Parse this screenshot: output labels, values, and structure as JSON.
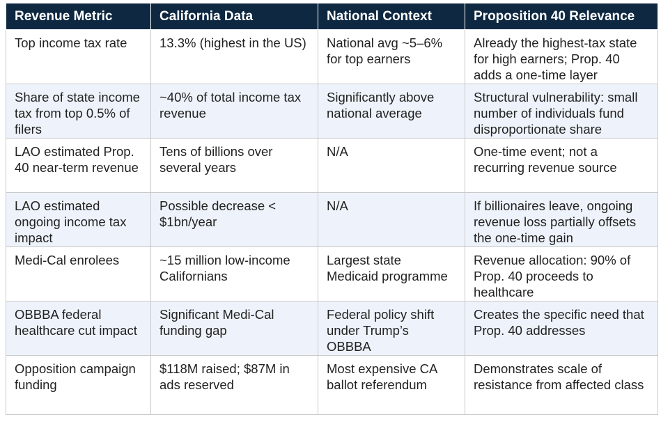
{
  "table": {
    "headers": [
      "Revenue Metric",
      "California Data",
      "National Context",
      "Proposition 40 Relevance"
    ],
    "rows": [
      [
        "Top income tax rate",
        "13.3% (highest in the US)",
        "National avg ~5–6% for top earners",
        "Already the highest-tax state for high earners; Prop. 40 adds a one-time layer"
      ],
      [
        "Share of state income tax from top 0.5% of filers",
        "~40% of total income tax revenue",
        "Significantly above national average",
        "Structural vulnerability: small number of individuals fund disproportionate share"
      ],
      [
        "LAO estimated Prop. 40 near-term revenue",
        "Tens of billions over several years",
        "N/A",
        "One-time event; not a recurring revenue source"
      ],
      [
        "LAO estimated ongoing income tax impact",
        "Possible decrease < $1bn/year",
        "N/A",
        "If billionaires leave, ongoing revenue loss partially offsets the one-time gain"
      ],
      [
        "Medi-Cal enrolees",
        "~15 million low-income Californians",
        "Largest state Medicaid programme",
        "Revenue allocation: 90% of Prop. 40 proceeds to healthcare"
      ],
      [
        "OBBBA federal healthcare cut impact",
        "Significant Medi-Cal funding gap",
        "Federal policy shift under Trump’s OBBBA",
        "Creates the specific need that Prop. 40 addresses"
      ],
      [
        "Opposition campaign funding",
        "$118M raised; $87M in ads reserved",
        "Most expensive CA ballot referendum",
        "Demonstrates scale of resistance from affected class"
      ]
    ]
  }
}
